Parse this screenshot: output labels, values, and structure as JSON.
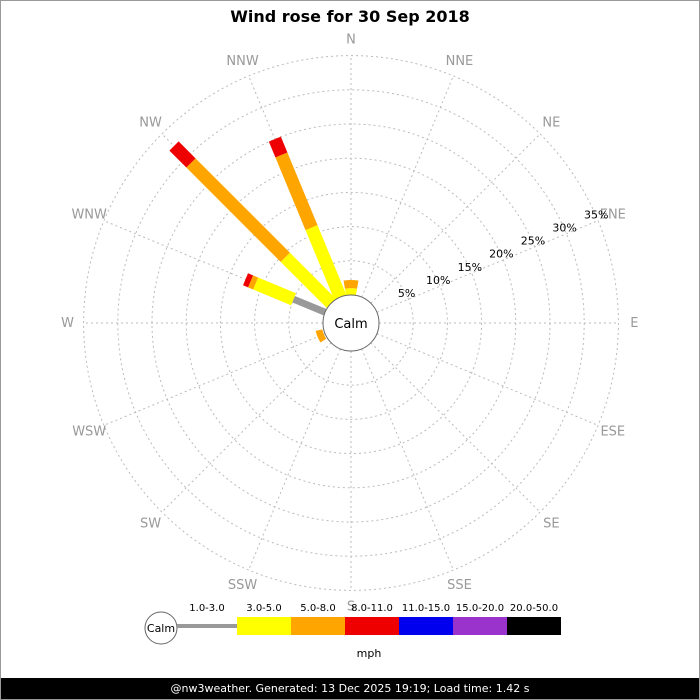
{
  "chart_data": {
    "type": "windrose",
    "title": "Wind rose for 30 Sep 2018",
    "calm_label": "Calm",
    "unit": "mph",
    "directions": [
      "N",
      "NNE",
      "NE",
      "ENE",
      "E",
      "ESE",
      "SE",
      "SSE",
      "S",
      "SSW",
      "SW",
      "WSW",
      "W",
      "WNW",
      "NW",
      "NNW"
    ],
    "rings_pct": [
      5,
      10,
      15,
      20,
      25,
      30,
      35
    ],
    "ring_label_bearing_deg": 67.5,
    "colors": {
      "grid": "#bbbbbb",
      "direction_label": "#999999",
      "percent_label": "#000000"
    },
    "speed_bins": [
      {
        "label": "1.0-3.0",
        "color": "#999999"
      },
      {
        "label": "3.0-5.0",
        "color": "#ffff00"
      },
      {
        "label": "5.0-8.0",
        "color": "#ffa500"
      },
      {
        "label": "8.0-11.0",
        "color": "#ee0000"
      },
      {
        "label": "11.0-15.0",
        "color": "#0000ee"
      },
      {
        "label": "15.0-20.0",
        "color": "#9933cc"
      },
      {
        "label": "20.0-50.0",
        "color": "#000000"
      }
    ],
    "petals": [
      {
        "dir": "N",
        "deg": 0,
        "segments": [
          {
            "bin": 1,
            "from": 0,
            "to": 1,
            "arc": true
          },
          {
            "bin": 2,
            "from": 1,
            "to": 2.2,
            "arc": true
          }
        ]
      },
      {
        "dir": "WSW",
        "deg": 247.5,
        "segments": [
          {
            "bin": 2,
            "from": 0.2,
            "to": 1.2,
            "arc": true
          }
        ]
      },
      {
        "dir": "WNW",
        "deg": 292.5,
        "segments": [
          {
            "bin": 0,
            "from": 0,
            "to": 5
          },
          {
            "bin": 1,
            "from": 5,
            "to": 11
          },
          {
            "bin": 2,
            "from": 11,
            "to": 11.8
          },
          {
            "bin": 3,
            "from": 11.8,
            "to": 12.6
          }
        ]
      },
      {
        "dir": "NW",
        "deg": 315,
        "segments": [
          {
            "bin": 1,
            "from": 0,
            "to": 9.5
          },
          {
            "bin": 2,
            "from": 9.5,
            "to": 29
          },
          {
            "bin": 3,
            "from": 29,
            "to": 32.5
          }
        ]
      },
      {
        "dir": "NNW",
        "deg": 337.5,
        "segments": [
          {
            "bin": 1,
            "from": 0,
            "to": 11
          },
          {
            "bin": 2,
            "from": 11,
            "to": 22.5
          },
          {
            "bin": 3,
            "from": 22.5,
            "to": 25
          }
        ]
      }
    ]
  },
  "footer": {
    "text": "@nw3weather. Generated: 13 Dec 2025 19:19; Load time: 1.42 s"
  }
}
